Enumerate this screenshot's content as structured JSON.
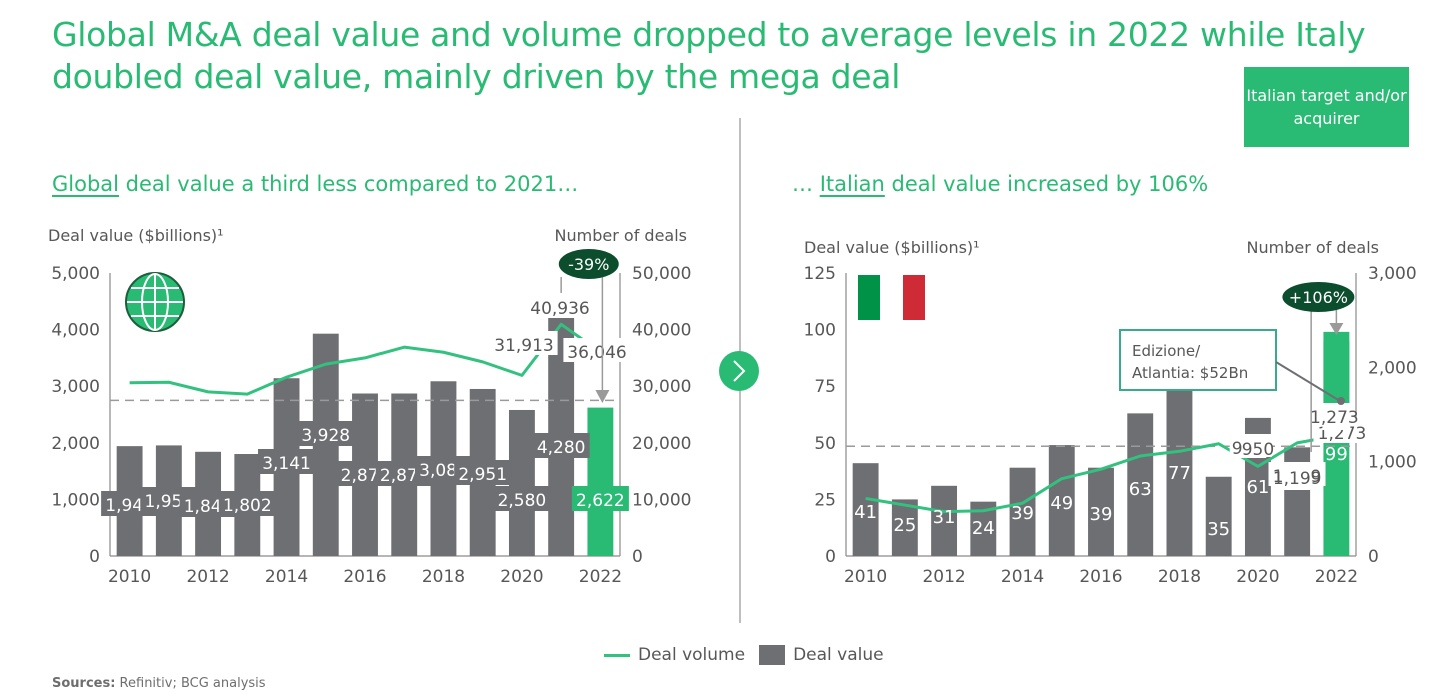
{
  "title": "Global M&A deal value and volume dropped to average levels in 2022 while Italy doubled deal value, mainly driven by the mega deal",
  "badge": "Italian target and/or acquirer",
  "left_subtitle": {
    "underlined": "Global",
    "rest": " deal value a third less compared to 2021…"
  },
  "right_subtitle": {
    "prefix": "… ",
    "underlined": "Italian",
    "rest": " deal value increased by 106%"
  },
  "legend": {
    "volume": "Deal volume",
    "value": "Deal value"
  },
  "sources": {
    "label": "Sources:",
    "text": " Refinitiv; BCG analysis"
  },
  "colors": {
    "green": "#29ba74",
    "bar": "#6e6f73",
    "dark_green": "#0b4d2c",
    "line": "#32c17e",
    "italy_green": "#009246",
    "italy_red": "#ce2b37"
  },
  "chart_data": [
    {
      "type": "bar",
      "title": "Global deal value a third less compared to 2021…",
      "ylabel": "Deal value ($billions)¹",
      "y2label": "Number of deals",
      "ylim": [
        0,
        5000
      ],
      "y2lim": [
        0,
        50000
      ],
      "yticks": [
        "0",
        "1,000",
        "2,000",
        "3,000",
        "4,000",
        "5,000"
      ],
      "y2ticks": [
        "0",
        "10,000",
        "20,000",
        "30,000",
        "40,000",
        "50,000"
      ],
      "xticks": [
        "2010",
        "2012",
        "2014",
        "2016",
        "2018",
        "2020",
        "2022"
      ],
      "categories": [
        "2010",
        "2011",
        "2012",
        "2013",
        "2014",
        "2015",
        "2016",
        "2017",
        "2018",
        "2019",
        "2020",
        "2021",
        "2022"
      ],
      "series": [
        {
          "name": "Deal value",
          "axis": "left",
          "type": "bar",
          "values": [
            1941,
            1954,
            1841,
            1802,
            3141,
            3928,
            2871,
            2871,
            3087,
            2951,
            2580,
            4280,
            2622
          ],
          "labels": [
            "1,941",
            "1,954",
            "1,841",
            "1,802",
            "3,141",
            "3,928",
            "2,871",
            "2,871",
            "3,087",
            "2,951",
            "2,580",
            "4,280",
            "2,622"
          ],
          "highlight_last": true
        },
        {
          "name": "Deal volume",
          "axis": "right",
          "type": "line",
          "values": [
            30600,
            30700,
            29000,
            28600,
            31600,
            33900,
            35000,
            36900,
            36000,
            34300,
            31913,
            40936,
            36046
          ],
          "labels": {
            "10": "31,913",
            "11": "40,936",
            "12": "36,046"
          }
        }
      ],
      "average_line": 2750,
      "change_badge": "-39%",
      "icon": "globe-icon"
    },
    {
      "type": "bar",
      "title": "… Italian deal value increased by 106%",
      "ylabel": "Deal value ($billions)¹",
      "y2label": "Number of deals",
      "ylim": [
        0,
        125
      ],
      "y2lim": [
        0,
        3000
      ],
      "yticks": [
        "0",
        "25",
        "50",
        "75",
        "100",
        "125"
      ],
      "y2ticks": [
        "0",
        "1,000",
        "2,000",
        "3,000"
      ],
      "xticks": [
        "2010",
        "2012",
        "2014",
        "2016",
        "2018",
        "2020",
        "2022"
      ],
      "categories": [
        "2010",
        "2011",
        "2012",
        "2013",
        "2014",
        "2015",
        "2016",
        "2017",
        "2018",
        "2019",
        "2020",
        "2021",
        "2022"
      ],
      "series": [
        {
          "name": "Deal value",
          "axis": "left",
          "type": "bar",
          "values": [
            41,
            25,
            31,
            24,
            39,
            49,
            39,
            63,
            77,
            35,
            61,
            48,
            99
          ],
          "labels": [
            "41",
            "25",
            "31",
            "24",
            "39",
            "49",
            "39",
            "63",
            "77",
            "35",
            "61",
            "48",
            "99"
          ],
          "highlight_last": true
        },
        {
          "name": "Deal volume",
          "axis": "right",
          "type": "line",
          "values": [
            610,
            540,
            470,
            480,
            560,
            820,
            920,
            1060,
            1110,
            1190,
            950,
            1199,
            1273
          ],
          "labels": {
            "10": "950",
            "11": "1,199",
            "12": "1,273"
          }
        }
      ],
      "average_line": 48.5,
      "change_badge": "+106%",
      "annotation": "Edizione/ Atlantia: $52Bn",
      "annotation_lines": [
        "Edizione/",
        "Atlantia: $52Bn"
      ],
      "icon": "italy-flag-icon"
    }
  ]
}
